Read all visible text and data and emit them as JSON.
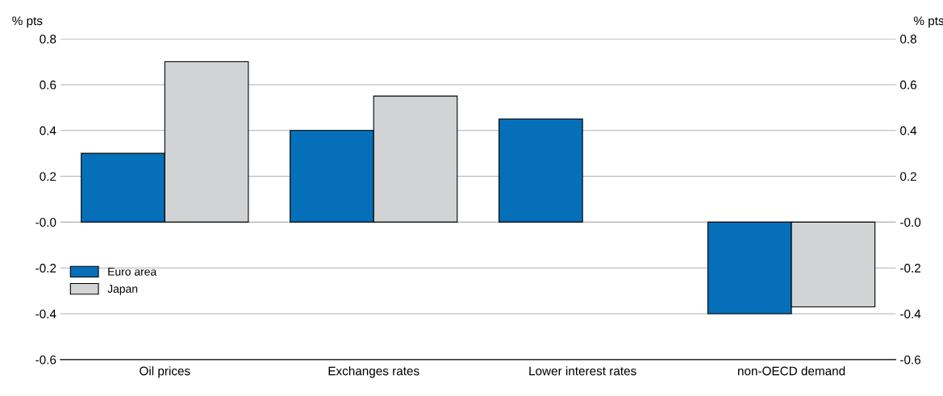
{
  "chart_data": {
    "type": "bar",
    "categories": [
      "Oil prices",
      "Exchanges rates",
      "Lower interest rates",
      "non-OECD demand"
    ],
    "series": [
      {
        "name": "Euro area",
        "color": "#0570b9",
        "values": [
          0.3,
          0.4,
          0.45,
          -0.4
        ]
      },
      {
        "name": "Japan",
        "color": "#d1d3d4",
        "values": [
          0.7,
          0.55,
          null,
          -0.37
        ]
      }
    ],
    "ylabel": "% pts",
    "y2label": "% pts",
    "ylim": [
      -0.6,
      0.8
    ],
    "yticks": [
      -0.6,
      -0.4,
      -0.2,
      {
        "value": 0,
        "label": "-0.0"
      },
      0.2,
      0.4,
      0.6,
      0.8
    ],
    "y2lim": [
      -0.6,
      0.8
    ],
    "y2ticks": [
      -0.6,
      -0.4,
      -0.2,
      {
        "value": 0,
        "label": "-0.0"
      },
      0.2,
      0.4,
      0.6,
      0.8
    ],
    "grid": "y",
    "legend": "bottom left"
  }
}
